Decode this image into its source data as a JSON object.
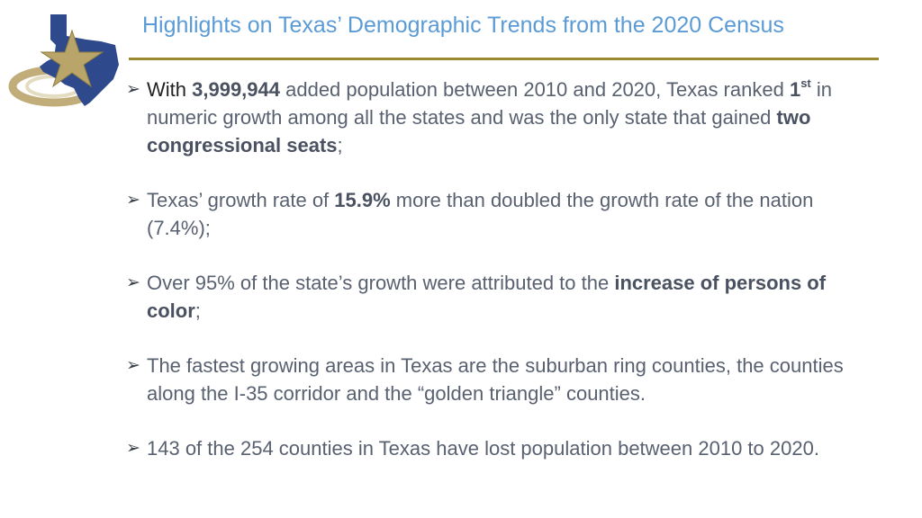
{
  "title": "Highlights on Texas’ Demographic Trends from the 2020 Census",
  "bullets": [
    {
      "lead": "With",
      "num": "3,999,944",
      "t1": " added population between 2010 and 2020, Texas ranked ",
      "rank": "1",
      "rank_sup": "st",
      "t2": " in numeric growth among all the states and was the only state that gained ",
      "bold2": "two congressional seats",
      "t3": ";"
    },
    {
      "t1": " Texas’ growth rate of ",
      "bold1": "15.9%",
      "t2": " more than doubled the growth rate of the nation (7.4%);"
    },
    {
      "t1": " Over 95% of the state’s growth were attributed to the ",
      "bold1": "increase of persons of color",
      "t2": ";"
    },
    {
      "t1": "The fastest growing areas in Texas are the suburban ring counties, the counties along the I-35 corridor and the “golden triangle” counties."
    },
    {
      "t1": "143 of the 254 counties in Texas have lost population between 2010 to 2020."
    }
  ],
  "colors": {
    "title": "#5b9bd5",
    "rule": "#9c8a2e",
    "text": "#596170",
    "logo_blue": "#2e4a8c",
    "logo_gold": "#b9a46a"
  },
  "icons": {
    "logo": "texas-star-logo",
    "bullet": "arrowhead-bullet"
  }
}
